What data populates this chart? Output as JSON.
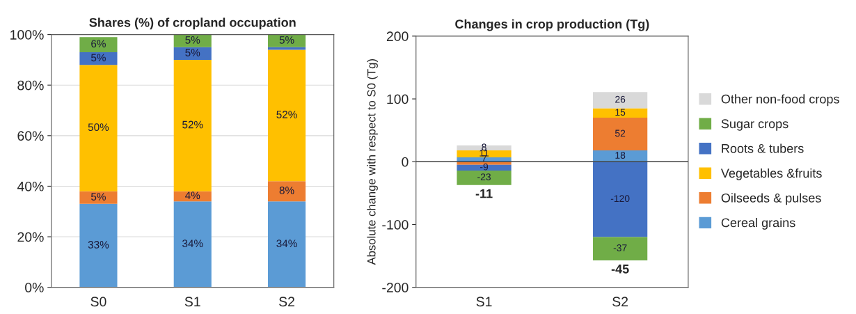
{
  "chart_data": [
    {
      "type": "bar",
      "title": "Shares (%) of cropland occupation",
      "categories": [
        "S0",
        "S1",
        "S2"
      ],
      "stacked": true,
      "ylim": [
        0,
        100
      ],
      "yticks": [
        {
          "value": 0,
          "label": "0%"
        },
        {
          "value": 20,
          "label": "20%"
        },
        {
          "value": 40,
          "label": "40%"
        },
        {
          "value": 60,
          "label": "60%"
        },
        {
          "value": 80,
          "label": "80%"
        },
        {
          "value": 100,
          "label": "100%"
        }
      ],
      "grid": "y",
      "series": [
        {
          "color": "#5b9bd5",
          "values": [
            33,
            34,
            34
          ],
          "value_labels": [
            "33%",
            "34%",
            "34%"
          ]
        },
        {
          "color": "#ed7d31",
          "values": [
            5,
            4,
            8
          ],
          "value_labels": [
            "5%",
            "4%",
            "8%"
          ]
        },
        {
          "color": "#ffc000",
          "values": [
            50,
            52,
            52
          ],
          "value_labels": [
            "50%",
            "52%",
            "52%"
          ]
        },
        {
          "color": "#4472c4",
          "values": [
            5,
            5,
            1
          ],
          "value_labels": [
            "5%",
            "5%",
            null
          ]
        },
        {
          "color": "#70ad47",
          "values": [
            6,
            5,
            5
          ],
          "value_labels": [
            "6%",
            "5%",
            "5%"
          ]
        }
      ]
    },
    {
      "type": "bar",
      "title": "Changes in crop production (Tg)",
      "ylabel": "Absolute change with respect to S0 (Tg)",
      "categories": [
        "S1",
        "S2"
      ],
      "stacked": true,
      "ylim": [
        -200,
        200
      ],
      "yticks": [
        -200,
        -100,
        0,
        100,
        200
      ],
      "legend": "right",
      "ref_lines": [
        {
          "axis": "y",
          "value": 0,
          "color": "#404040"
        }
      ],
      "totals": [
        "-11",
        "-45"
      ],
      "series": [
        {
          "name": "Cereal grains",
          "color": "#5b9bd5",
          "values": [
            7,
            18
          ],
          "value_labels": [
            "7",
            "18"
          ]
        },
        {
          "name": "Oilseeds & pulses",
          "color": "#ed7d31",
          "values": [
            -5,
            52
          ],
          "value_labels": [
            null,
            "52"
          ]
        },
        {
          "name": "Vegetables &fruits",
          "color": "#ffc000",
          "values": [
            11,
            15
          ],
          "value_labels": [
            "11",
            "15"
          ]
        },
        {
          "name": "Roots & tubers",
          "color": "#4472c4",
          "values": [
            -9,
            -120
          ],
          "value_labels": [
            "-9",
            "-120"
          ]
        },
        {
          "name": "Sugar crops",
          "color": "#70ad47",
          "values": [
            -23,
            -37
          ],
          "value_labels": [
            "-23",
            "-37"
          ]
        },
        {
          "name": "Other non-food crops",
          "color": "#d9d9d9",
          "values": [
            8,
            26
          ],
          "value_labels": [
            "8",
            "26"
          ]
        }
      ]
    }
  ]
}
